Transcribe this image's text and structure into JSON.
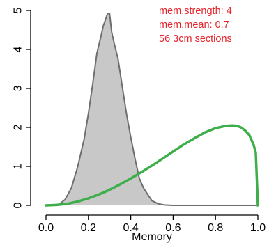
{
  "chart_data": {
    "type": "area",
    "title": "",
    "xlabel": "Memory",
    "ylabel": "",
    "xlim": [
      -0.04,
      1.04
    ],
    "ylim": [
      0,
      5.15
    ],
    "xticks": [
      0.0,
      0.2,
      0.4,
      0.6,
      0.8,
      1.0
    ],
    "xtick_labels": [
      "0.0",
      "0.2",
      "0.4",
      "0.6",
      "0.8",
      "1.0"
    ],
    "yticks": [
      0,
      1,
      2,
      3,
      4,
      5
    ],
    "ytick_labels": [
      "0",
      "1",
      "2",
      "3",
      "4",
      "5"
    ],
    "grid": false,
    "annotations": [
      "mem.strength: 4",
      "mem.mean: 0.7",
      "56 3cm sections"
    ],
    "annotation_color": "#e8242b",
    "series": [
      {
        "kind": "density",
        "fill": "#c8c8c8",
        "stroke": "#6e6e6e",
        "x": [
          0.02,
          0.06,
          0.09,
          0.12,
          0.15,
          0.18,
          0.2,
          0.22,
          0.24,
          0.26,
          0.27,
          0.28,
          0.29,
          0.3,
          0.31,
          0.32,
          0.34,
          0.36,
          0.38,
          0.4,
          0.42,
          0.44,
          0.46,
          0.48,
          0.5,
          0.53,
          0.56,
          0.6,
          0.8,
          1.0
        ],
        "y": [
          0,
          0.02,
          0.15,
          0.45,
          1.0,
          1.7,
          2.35,
          3.1,
          3.9,
          4.35,
          4.6,
          4.75,
          4.92,
          4.92,
          4.45,
          4.2,
          3.75,
          3.05,
          2.35,
          1.75,
          1.2,
          0.7,
          0.45,
          0.28,
          0.12,
          0.04,
          0.01,
          0,
          0,
          0
        ]
      },
      {
        "kind": "curve",
        "color": "#3dae49",
        "x": [
          0.0,
          0.05,
          0.1,
          0.15,
          0.2,
          0.25,
          0.3,
          0.35,
          0.4,
          0.45,
          0.5,
          0.55,
          0.6,
          0.65,
          0.7,
          0.75,
          0.8,
          0.85,
          0.88,
          0.9,
          0.92,
          0.94,
          0.96,
          0.98,
          0.99,
          1.0
        ],
        "y": [
          0.0,
          0.01,
          0.04,
          0.1,
          0.18,
          0.28,
          0.4,
          0.54,
          0.69,
          0.85,
          1.02,
          1.2,
          1.38,
          1.56,
          1.72,
          1.87,
          1.98,
          2.04,
          2.05,
          2.04,
          2.0,
          1.92,
          1.8,
          1.55,
          1.35,
          0.0
        ]
      }
    ]
  }
}
